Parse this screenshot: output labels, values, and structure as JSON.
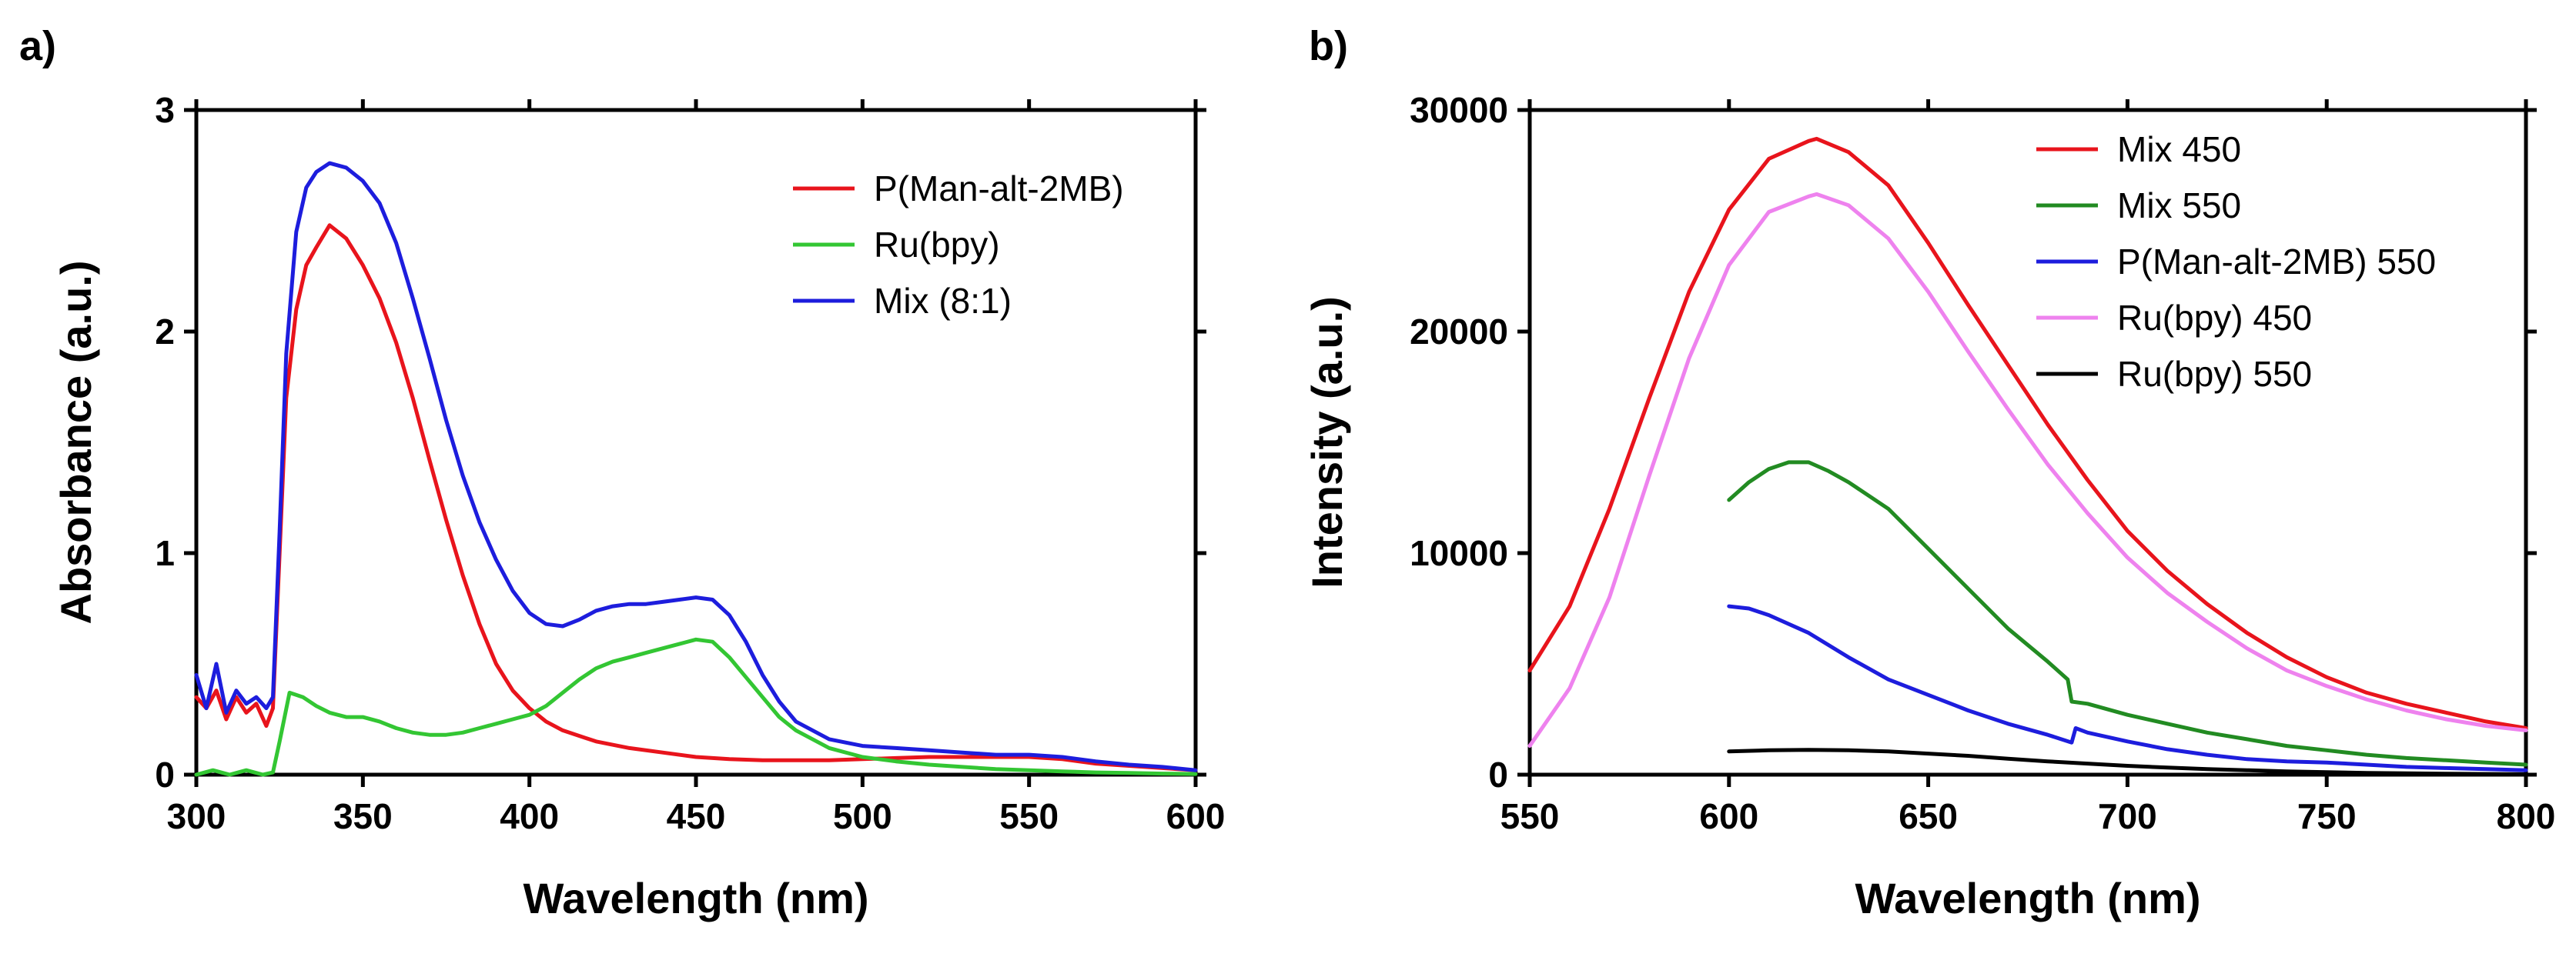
{
  "chart_data": [
    {
      "panel_label": "a)",
      "type": "line",
      "xlabel": "Wavelength (nm)",
      "ylabel": "Absorbance (a.u.)",
      "xlim": [
        300,
        600
      ],
      "ylim": [
        0,
        3
      ],
      "xticks": [
        300,
        350,
        400,
        450,
        500,
        550,
        600
      ],
      "yticks": [
        0,
        1,
        2,
        3
      ],
      "grid": false,
      "legend_position": "top-right",
      "series": [
        {
          "name": "P(Man-alt-2MB)",
          "color": "#e8141c",
          "x": [
            300,
            303,
            306,
            309,
            312,
            315,
            318,
            321,
            323,
            325,
            327,
            330,
            333,
            336,
            340,
            345,
            350,
            355,
            360,
            365,
            370,
            375,
            380,
            385,
            390,
            395,
            400,
            405,
            410,
            420,
            430,
            440,
            450,
            460,
            470,
            480,
            490,
            500,
            510,
            520,
            530,
            540,
            550,
            560,
            570,
            580,
            590,
            600
          ],
          "y": [
            0.35,
            0.3,
            0.38,
            0.25,
            0.35,
            0.28,
            0.32,
            0.22,
            0.3,
            1.0,
            1.7,
            2.1,
            2.3,
            2.38,
            2.48,
            2.42,
            2.3,
            2.15,
            1.95,
            1.7,
            1.42,
            1.15,
            0.9,
            0.68,
            0.5,
            0.38,
            0.3,
            0.24,
            0.2,
            0.15,
            0.12,
            0.1,
            0.08,
            0.07,
            0.065,
            0.065,
            0.065,
            0.07,
            0.075,
            0.08,
            0.08,
            0.08,
            0.08,
            0.07,
            0.05,
            0.04,
            0.03,
            0.02
          ]
        },
        {
          "name": "Ru(bpy)",
          "color": "#33c633",
          "x": [
            300,
            305,
            310,
            315,
            320,
            323,
            325,
            328,
            332,
            336,
            340,
            345,
            350,
            355,
            360,
            365,
            370,
            375,
            380,
            385,
            390,
            395,
            400,
            405,
            410,
            415,
            420,
            425,
            430,
            435,
            440,
            445,
            450,
            455,
            460,
            465,
            470,
            475,
            480,
            490,
            500,
            510,
            520,
            530,
            540,
            550,
            560,
            570,
            580,
            590,
            600
          ],
          "y": [
            0.0,
            0.02,
            0.0,
            0.02,
            0.0,
            0.01,
            0.15,
            0.37,
            0.35,
            0.31,
            0.28,
            0.26,
            0.26,
            0.24,
            0.21,
            0.19,
            0.18,
            0.18,
            0.19,
            0.21,
            0.23,
            0.25,
            0.27,
            0.31,
            0.37,
            0.43,
            0.48,
            0.51,
            0.53,
            0.55,
            0.57,
            0.59,
            0.61,
            0.6,
            0.53,
            0.44,
            0.35,
            0.26,
            0.2,
            0.12,
            0.08,
            0.06,
            0.045,
            0.035,
            0.025,
            0.02,
            0.015,
            0.01,
            0.008,
            0.005,
            0.003
          ]
        },
        {
          "name": "Mix (8:1)",
          "color": "#1d1ddd",
          "x": [
            300,
            303,
            306,
            309,
            312,
            315,
            318,
            321,
            323,
            325,
            327,
            330,
            333,
            336,
            340,
            345,
            350,
            355,
            360,
            365,
            370,
            375,
            380,
            385,
            390,
            395,
            400,
            405,
            410,
            415,
            420,
            425,
            430,
            435,
            440,
            445,
            450,
            455,
            460,
            465,
            470,
            475,
            480,
            490,
            500,
            510,
            520,
            530,
            540,
            550,
            560,
            570,
            580,
            590,
            600
          ],
          "y": [
            0.45,
            0.3,
            0.5,
            0.28,
            0.38,
            0.32,
            0.35,
            0.3,
            0.35,
            1.1,
            1.9,
            2.45,
            2.65,
            2.72,
            2.76,
            2.74,
            2.68,
            2.58,
            2.4,
            2.15,
            1.88,
            1.6,
            1.35,
            1.14,
            0.97,
            0.83,
            0.73,
            0.68,
            0.67,
            0.7,
            0.74,
            0.76,
            0.77,
            0.77,
            0.78,
            0.79,
            0.8,
            0.79,
            0.72,
            0.6,
            0.45,
            0.33,
            0.24,
            0.16,
            0.13,
            0.12,
            0.11,
            0.1,
            0.09,
            0.09,
            0.08,
            0.06,
            0.045,
            0.035,
            0.02
          ]
        }
      ]
    },
    {
      "panel_label": "b)",
      "type": "line",
      "xlabel": "Wavelength (nm)",
      "ylabel": "Intensity (a.u.)",
      "xlim": [
        550,
        800
      ],
      "ylim": [
        0,
        30000
      ],
      "xticks": [
        550,
        600,
        650,
        700,
        750,
        800
      ],
      "yticks": [
        0,
        10000,
        20000,
        30000
      ],
      "grid": false,
      "legend_position": "top-right",
      "series": [
        {
          "name": "Mix 450",
          "color": "#e8141c",
          "x": [
            550,
            560,
            570,
            580,
            590,
            600,
            610,
            620,
            622,
            630,
            640,
            650,
            660,
            670,
            680,
            690,
            700,
            710,
            720,
            730,
            740,
            750,
            760,
            770,
            780,
            790,
            800
          ],
          "y": [
            4700,
            7600,
            12000,
            17000,
            21800,
            25500,
            27800,
            28600,
            28700,
            28100,
            26600,
            24000,
            21200,
            18500,
            15800,
            13300,
            11000,
            9200,
            7700,
            6400,
            5300,
            4400,
            3700,
            3200,
            2800,
            2400,
            2100
          ]
        },
        {
          "name": "Mix 550",
          "color": "#228b22",
          "x": [
            600,
            605,
            610,
            615,
            620,
            625,
            630,
            640,
            650,
            660,
            670,
            680,
            685,
            686,
            690,
            700,
            710,
            720,
            730,
            740,
            750,
            760,
            770,
            780,
            790,
            800
          ],
          "y": [
            12400,
            13200,
            13800,
            14100,
            14100,
            13700,
            13200,
            12000,
            10200,
            8400,
            6600,
            5100,
            4300,
            3300,
            3200,
            2700,
            2300,
            1900,
            1600,
            1300,
            1100,
            900,
            750,
            650,
            550,
            450
          ]
        },
        {
          "name": "P(Man-alt-2MB) 550",
          "color": "#1d1ddd",
          "x": [
            600,
            605,
            610,
            620,
            630,
            640,
            650,
            660,
            670,
            680,
            686,
            687,
            690,
            700,
            710,
            720,
            730,
            740,
            750,
            760,
            770,
            780,
            790,
            800
          ],
          "y": [
            7600,
            7500,
            7200,
            6400,
            5300,
            4300,
            3600,
            2900,
            2300,
            1800,
            1450,
            2100,
            1900,
            1500,
            1150,
            900,
            700,
            600,
            550,
            450,
            350,
            300,
            250,
            200
          ]
        },
        {
          "name": "Ru(bpy) 450",
          "color": "#ee82ee",
          "x": [
            550,
            560,
            570,
            580,
            590,
            600,
            610,
            620,
            622,
            630,
            640,
            650,
            660,
            670,
            680,
            690,
            700,
            710,
            720,
            730,
            740,
            750,
            760,
            770,
            780,
            790,
            800
          ],
          "y": [
            1300,
            3900,
            8000,
            13500,
            18800,
            23000,
            25400,
            26100,
            26200,
            25700,
            24200,
            21800,
            19100,
            16500,
            14000,
            11800,
            9800,
            8200,
            6900,
            5700,
            4700,
            4000,
            3400,
            2900,
            2500,
            2200,
            2000
          ]
        },
        {
          "name": "Ru(bpy) 550",
          "color": "#000000",
          "x": [
            600,
            610,
            620,
            630,
            640,
            650,
            660,
            670,
            680,
            690,
            700,
            710,
            720,
            730,
            740,
            750,
            760,
            770,
            780,
            790,
            800
          ],
          "y": [
            1050,
            1100,
            1120,
            1100,
            1050,
            950,
            850,
            720,
            600,
            500,
            400,
            320,
            250,
            200,
            150,
            110,
            80,
            60,
            40,
            30,
            20
          ]
        }
      ]
    }
  ]
}
